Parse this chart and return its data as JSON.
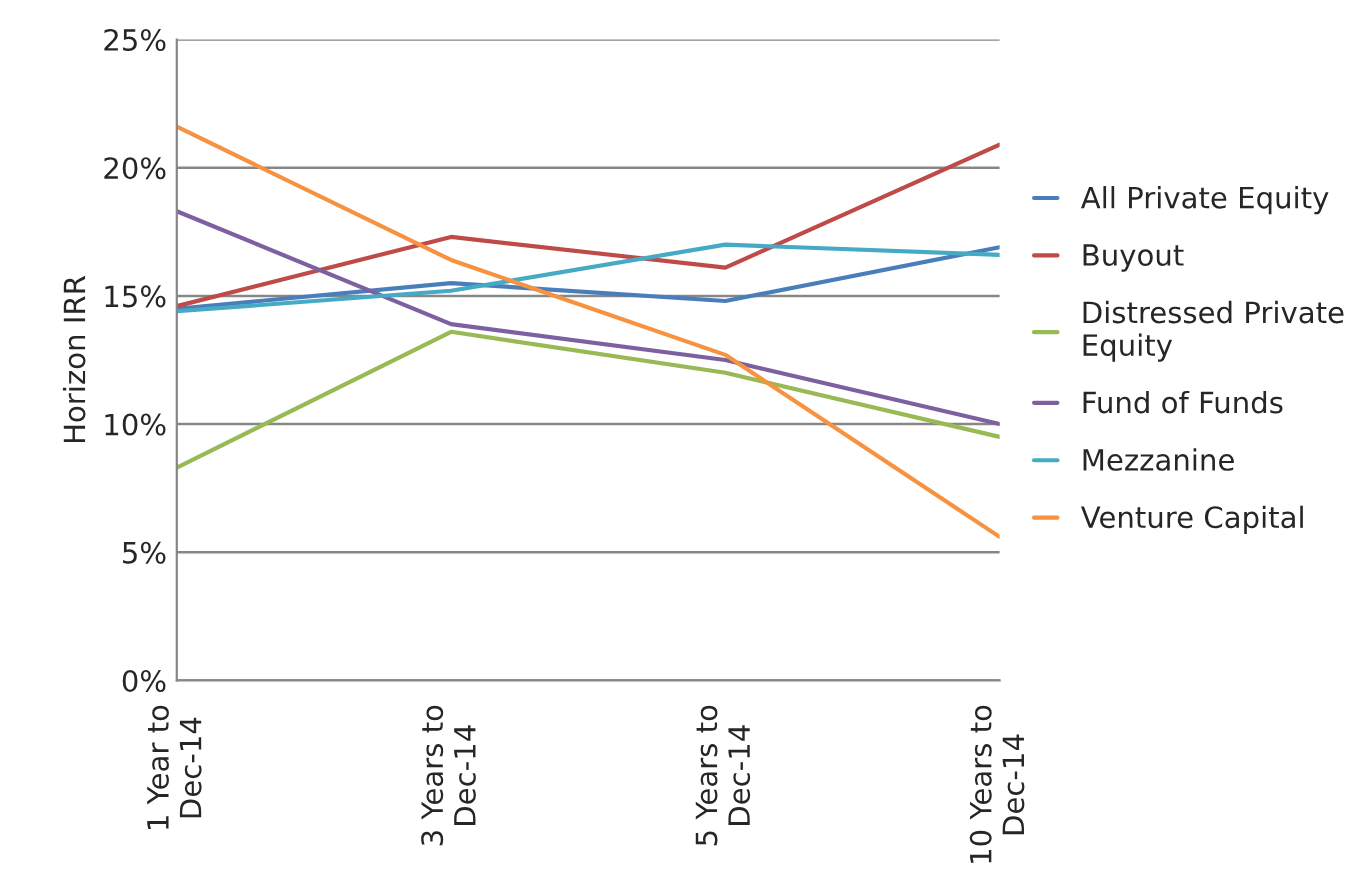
{
  "chart_data": {
    "type": "line",
    "ylabel": "Horizon IRR",
    "categories": [
      "1 Year to\nDec-14",
      "3 Years to\nDec-14",
      "5 Years to\nDec-14",
      "10 Years to\nDec-14"
    ],
    "series": [
      {
        "name": "All Private Equity",
        "color": "#4a7ebb",
        "values": [
          14.5,
          15.5,
          14.8,
          16.9
        ]
      },
      {
        "name": "Buyout",
        "color": "#be4b48",
        "values": [
          14.6,
          17.3,
          16.1,
          20.9
        ]
      },
      {
        "name": "Distressed Private\nEquity",
        "color": "#98b954",
        "values": [
          8.3,
          13.6,
          12.0,
          9.5
        ]
      },
      {
        "name": "Fund of Funds",
        "color": "#7d60a0",
        "values": [
          18.3,
          13.9,
          12.5,
          10.0
        ]
      },
      {
        "name": "Mezzanine",
        "color": "#46aac5",
        "values": [
          14.4,
          15.2,
          17.0,
          16.6
        ]
      },
      {
        "name": "Venture Capital",
        "color": "#f69240",
        "values": [
          21.6,
          16.4,
          12.7,
          5.6
        ]
      }
    ],
    "ylim": [
      0,
      25
    ],
    "yticks": [
      {
        "value": 0,
        "label": "0%"
      },
      {
        "value": 5,
        "label": "5%"
      },
      {
        "value": 10,
        "label": "10%"
      },
      {
        "value": 15,
        "label": "15%"
      },
      {
        "value": 20,
        "label": "20%"
      },
      {
        "value": 25,
        "label": "25%"
      }
    ],
    "grid": "y",
    "legend": "right",
    "marker": "none",
    "line_style": "solid"
  }
}
